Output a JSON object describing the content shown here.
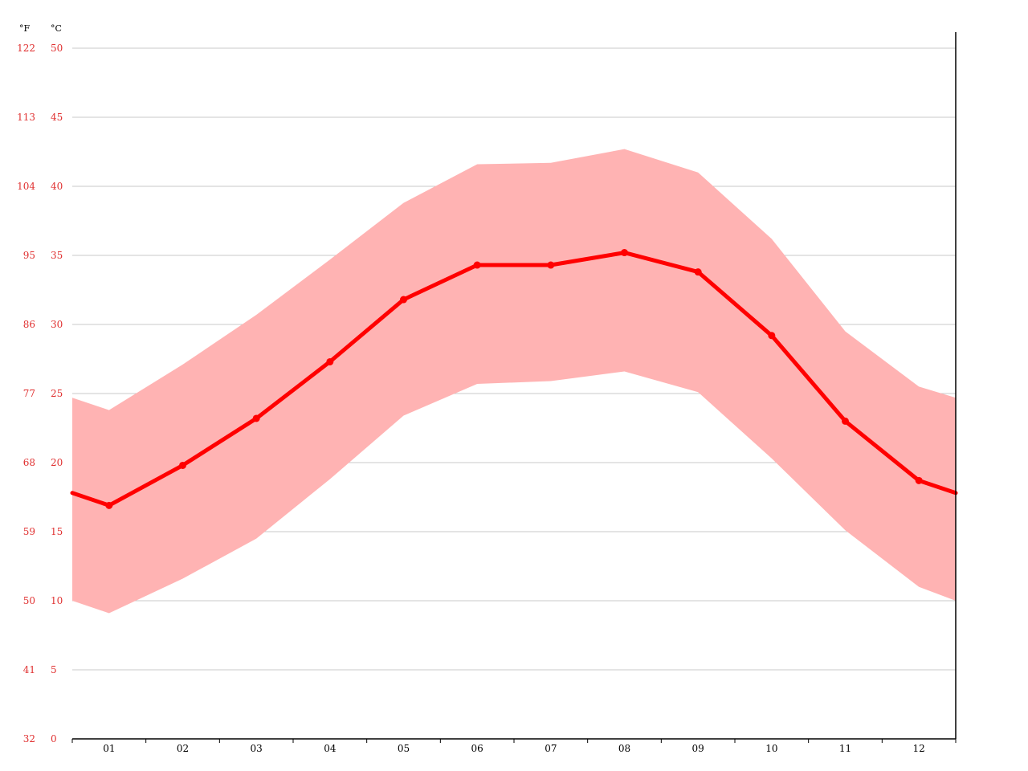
{
  "chart_data": {
    "type": "area",
    "categories": [
      "01",
      "02",
      "03",
      "04",
      "05",
      "06",
      "07",
      "08",
      "09",
      "10",
      "11",
      "12"
    ],
    "series": [
      {
        "values": [
          16.9,
          19.8,
          23.2,
          27.3,
          31.8,
          34.3,
          34.3,
          35.2,
          33.8,
          29.2,
          23.0,
          18.7
        ]
      },
      {
        "values": [
          23.8,
          27.1,
          30.7,
          34.7,
          38.8,
          41.6,
          41.7,
          42.7,
          41.0,
          36.2,
          29.5,
          25.5
        ]
      },
      {
        "values": [
          9.1,
          11.6,
          14.5,
          18.8,
          23.4,
          25.7,
          25.9,
          26.6,
          25.1,
          20.3,
          15.1,
          11.0
        ]
      }
    ],
    "edge_values": {
      "line": [
        17.8,
        17.8
      ],
      "band_high": [
        24.7,
        24.7
      ],
      "band_low": [
        10.0,
        10.0
      ]
    },
    "ylim": [
      0,
      50
    ],
    "y_ticks_c": [
      "0",
      "5",
      "10",
      "15",
      "20",
      "25",
      "30",
      "35",
      "40",
      "45",
      "50"
    ],
    "y_ticks_f": [
      "32",
      "41",
      "50",
      "59",
      "68",
      "77",
      "86",
      "95",
      "104",
      "113",
      "122"
    ],
    "unit_f": "°F",
    "unit_c": "°C",
    "grid": true,
    "colors": {
      "line": "#ff0000",
      "band": "#ffb3b3",
      "axis_labels": "#e03030",
      "grid": "#c8c8c8"
    }
  }
}
